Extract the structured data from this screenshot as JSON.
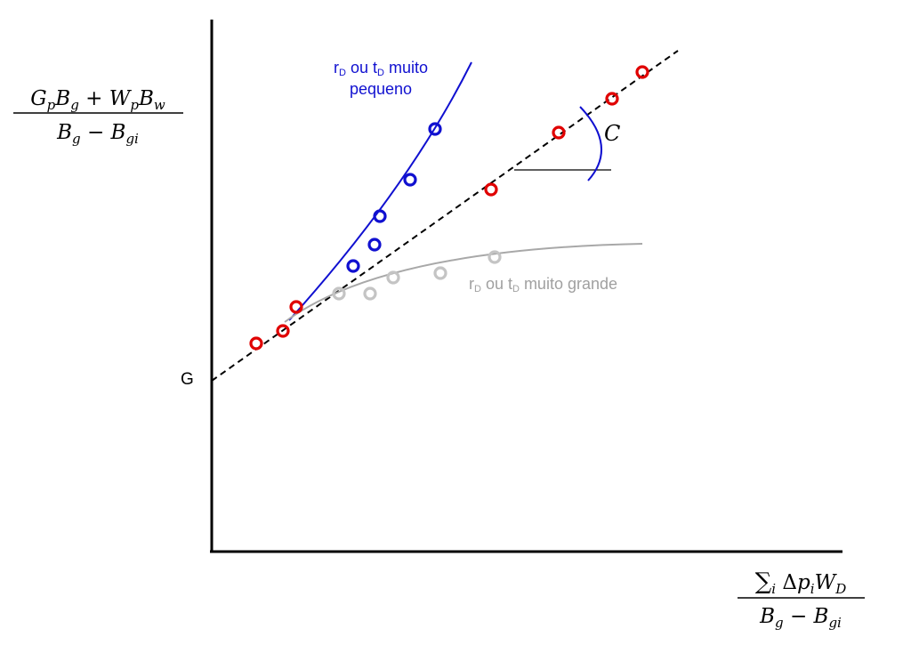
{
  "y_axis_label": {
    "numerator": "G_pB_g + W_pB_w",
    "denominator": "B_g − B_gi"
  },
  "x_axis_label": {
    "numerator": "∑_i Δp_iW_D",
    "denominator": "B_g − B_gi"
  },
  "intercept_label": "G",
  "slope_label": "C",
  "curve_small": {
    "line1": "rD ou tD muito",
    "line2": "pequeno",
    "color": "#1010d0"
  },
  "curve_large": {
    "label": "rD ou tD muito grande",
    "color": "#a8a8a8"
  },
  "ideal_points_color": "#e00000"
}
